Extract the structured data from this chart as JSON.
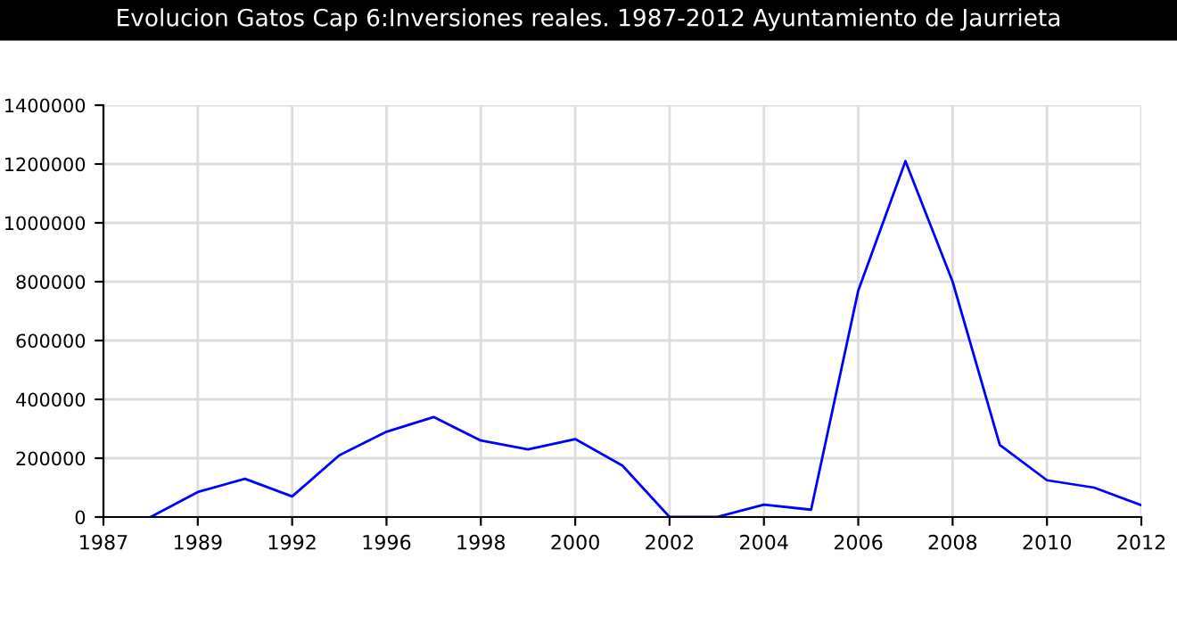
{
  "chart_data": {
    "type": "line",
    "title": "Evolucion Gatos Cap 6:Inversiones reales. 1987-2012 Ayuntamiento de Jaurrieta",
    "categories": [
      "1987",
      null,
      "1989",
      null,
      "1992",
      null,
      "1996",
      null,
      "1998",
      null,
      "2000",
      null,
      "2002",
      null,
      "2004",
      null,
      "2006",
      null,
      "2008",
      null,
      "2010",
      null,
      "2012"
    ],
    "series": [
      {
        "color": "#0000ff",
        "values": [
          null,
          0,
          85000,
          130000,
          70000,
          210000,
          290000,
          340000,
          260000,
          230000,
          265000,
          175000,
          0,
          0,
          42000,
          25000,
          770000,
          1210000,
          800000,
          245000,
          125000,
          100000,
          40000
        ]
      }
    ],
    "ylim": [
      0,
      1400000
    ],
    "yticks": [
      0,
      200000,
      400000,
      600000,
      800000,
      1000000,
      1200000,
      1400000
    ],
    "grid": true,
    "legend": false,
    "marker": "none",
    "line_style": "solid"
  }
}
